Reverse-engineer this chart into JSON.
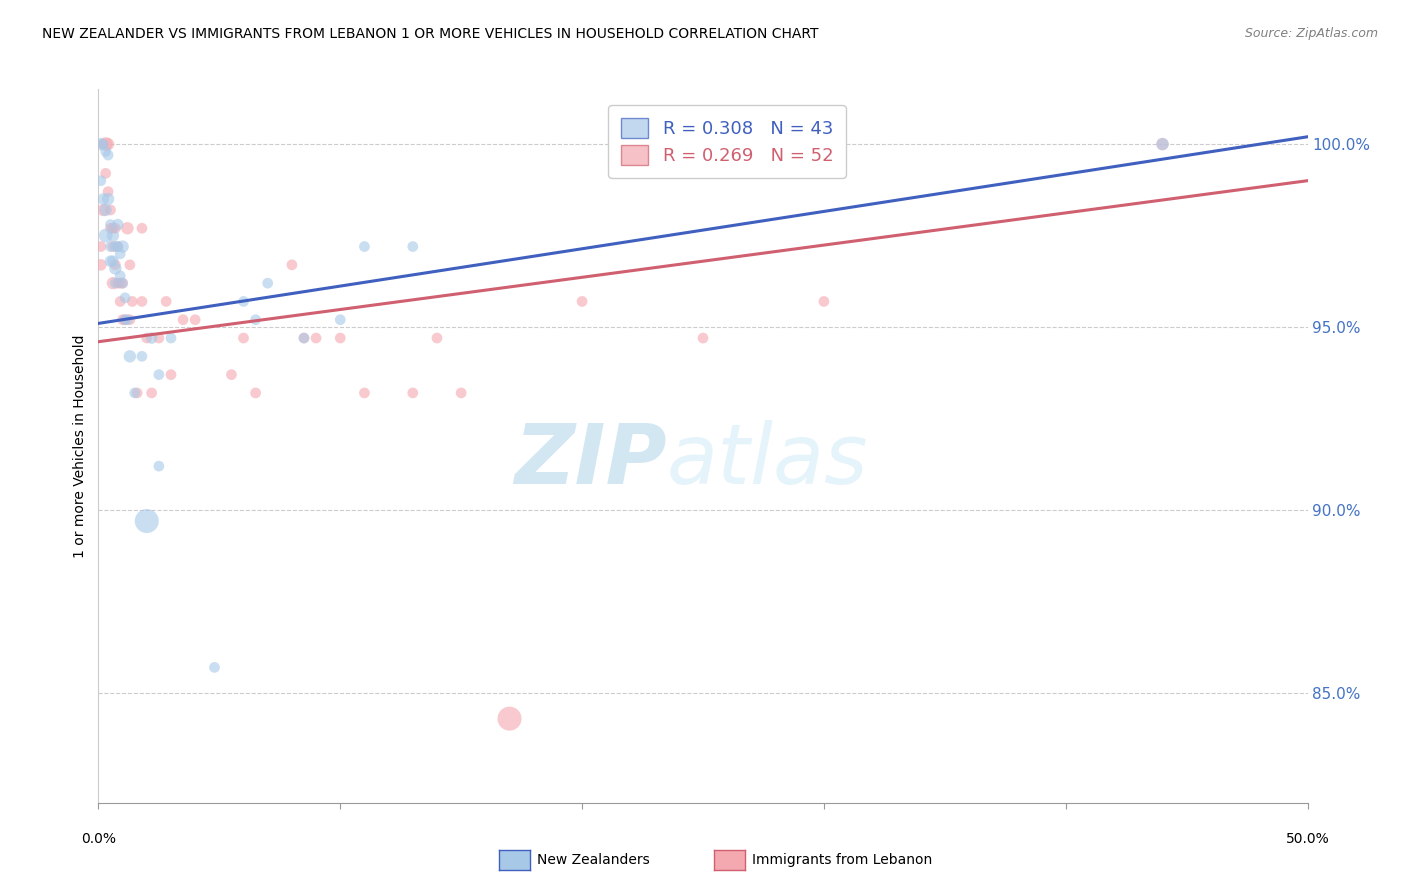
{
  "title": "NEW ZEALANDER VS IMMIGRANTS FROM LEBANON 1 OR MORE VEHICLES IN HOUSEHOLD CORRELATION CHART",
  "source": "Source: ZipAtlas.com",
  "ylabel": "1 or more Vehicles in Household",
  "legend_blue": "R = 0.308   N = 43",
  "legend_pink": "R = 0.269   N = 52",
  "watermark_zip": "ZIP",
  "watermark_atlas": "atlas",
  "blue_color": "#a8c8e8",
  "pink_color": "#f4a8b0",
  "line_blue": "#4060c0",
  "line_pink": "#d06070",
  "blue_scatter_x": [
    0.001,
    0.001,
    0.002,
    0.002,
    0.003,
    0.003,
    0.003,
    0.004,
    0.004,
    0.005,
    0.005,
    0.005,
    0.006,
    0.006,
    0.007,
    0.007,
    0.007,
    0.008,
    0.008,
    0.009,
    0.009,
    0.01,
    0.01,
    0.011,
    0.011,
    0.012,
    0.013,
    0.015,
    0.018,
    0.02,
    0.022,
    0.025,
    0.025,
    0.048,
    0.06,
    0.065,
    0.07,
    0.085,
    0.1,
    0.11,
    0.13,
    0.44,
    0.03
  ],
  "blue_scatter_y": [
    1.0,
    0.99,
    1.0,
    0.985,
    0.998,
    0.982,
    0.975,
    0.997,
    0.985,
    0.978,
    0.972,
    0.968,
    0.975,
    0.968,
    0.972,
    0.966,
    0.962,
    0.978,
    0.972,
    0.97,
    0.964,
    0.972,
    0.962,
    0.958,
    0.952,
    0.952,
    0.942,
    0.932,
    0.942,
    0.897,
    0.947,
    0.912,
    0.937,
    0.857,
    0.957,
    0.952,
    0.962,
    0.947,
    0.952,
    0.972,
    0.972,
    1.0,
    0.947
  ],
  "blue_scatter_size": [
    80,
    60,
    50,
    70,
    60,
    80,
    100,
    60,
    80,
    60,
    60,
    70,
    80,
    70,
    60,
    80,
    60,
    70,
    60,
    60,
    60,
    80,
    60,
    60,
    60,
    60,
    80,
    60,
    60,
    300,
    70,
    60,
    60,
    60,
    60,
    60,
    60,
    60,
    60,
    60,
    60,
    80,
    60
  ],
  "pink_scatter_x": [
    0.001,
    0.001,
    0.002,
    0.002,
    0.003,
    0.003,
    0.004,
    0.004,
    0.005,
    0.005,
    0.006,
    0.006,
    0.006,
    0.007,
    0.007,
    0.008,
    0.008,
    0.009,
    0.009,
    0.01,
    0.01,
    0.011,
    0.012,
    0.013,
    0.013,
    0.014,
    0.016,
    0.018,
    0.018,
    0.02,
    0.022,
    0.025,
    0.028,
    0.03,
    0.035,
    0.04,
    0.055,
    0.06,
    0.065,
    0.08,
    0.085,
    0.09,
    0.1,
    0.11,
    0.13,
    0.14,
    0.15,
    0.17,
    0.2,
    0.25,
    0.3,
    0.44
  ],
  "pink_scatter_y": [
    0.972,
    0.967,
    1.0,
    0.982,
    1.0,
    0.992,
    1.0,
    0.987,
    0.982,
    0.977,
    0.977,
    0.972,
    0.962,
    0.977,
    0.967,
    0.972,
    0.962,
    0.962,
    0.957,
    0.962,
    0.952,
    0.952,
    0.977,
    0.967,
    0.952,
    0.957,
    0.932,
    0.977,
    0.957,
    0.947,
    0.932,
    0.947,
    0.957,
    0.937,
    0.952,
    0.952,
    0.937,
    0.947,
    0.932,
    0.967,
    0.947,
    0.947,
    0.947,
    0.932,
    0.932,
    0.947,
    0.932,
    0.843,
    0.957,
    0.947,
    0.957,
    1.0
  ],
  "pink_scatter_size": [
    60,
    70,
    60,
    80,
    100,
    60,
    80,
    60,
    60,
    60,
    60,
    60,
    80,
    60,
    60,
    60,
    60,
    60,
    60,
    60,
    60,
    60,
    80,
    60,
    60,
    60,
    60,
    60,
    60,
    60,
    60,
    60,
    60,
    60,
    60,
    60,
    60,
    60,
    60,
    60,
    60,
    60,
    60,
    60,
    60,
    60,
    60,
    300,
    60,
    60,
    60,
    80
  ],
  "xlim": [
    0.0,
    0.5
  ],
  "ylim": [
    0.82,
    1.015
  ],
  "yticks": [
    0.85,
    0.9,
    0.95,
    1.0
  ],
  "ytick_labels": [
    "85.0%",
    "90.0%",
    "95.0%",
    "100.0%"
  ],
  "xtick_positions": [
    0.0,
    0.1,
    0.2,
    0.3,
    0.4,
    0.5
  ],
  "blue_line_x": [
    0.0,
    0.5
  ],
  "blue_line_y": [
    0.951,
    1.002
  ],
  "pink_line_x": [
    0.0,
    0.5
  ],
  "pink_line_y": [
    0.946,
    0.99
  ]
}
